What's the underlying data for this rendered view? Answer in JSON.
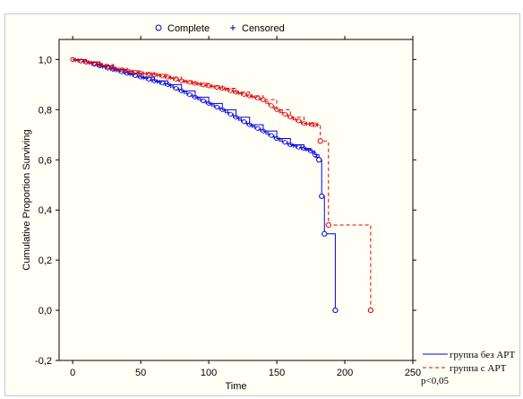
{
  "chart_data": {
    "type": "line",
    "subtype": "kaplan-meier survival",
    "xlabel": "Time",
    "ylabel": "Cumulative Proportion Surviving",
    "xlim": [
      -10,
      250
    ],
    "ylim": [
      -0.2,
      1.08
    ],
    "x_ticks": [
      0,
      50,
      100,
      150,
      200,
      250
    ],
    "y_ticks": [
      -0.2,
      0.0,
      0.2,
      0.4,
      0.6,
      0.8,
      1.0
    ],
    "y_tick_labels": [
      "-0,2",
      "0,0",
      "0,2",
      "0,4",
      "0,6",
      "0,8",
      "1,0"
    ],
    "x_tick_labels": [
      "0",
      "50",
      "100",
      "150",
      "200",
      "250"
    ],
    "top_legend": {
      "complete_label": "Complete",
      "censored_label": "Censored",
      "complete_marker": "circle",
      "censored_marker": "plus",
      "color": "#0000cc"
    },
    "series": [
      {
        "name": "группа без АРТ",
        "color": "#0000dd",
        "line_style": "solid",
        "points": [
          [
            0,
            1.0
          ],
          [
            10,
            0.99
          ],
          [
            20,
            0.975
          ],
          [
            30,
            0.96
          ],
          [
            40,
            0.945
          ],
          [
            50,
            0.93
          ],
          [
            60,
            0.915
          ],
          [
            70,
            0.9
          ],
          [
            80,
            0.875
          ],
          [
            90,
            0.85
          ],
          [
            100,
            0.825
          ],
          [
            110,
            0.8
          ],
          [
            120,
            0.77
          ],
          [
            130,
            0.74
          ],
          [
            140,
            0.715
          ],
          [
            150,
            0.685
          ],
          [
            160,
            0.66
          ],
          [
            170,
            0.645
          ],
          [
            175,
            0.635
          ],
          [
            178,
            0.62
          ],
          [
            181,
            0.6
          ],
          [
            183,
            0.455
          ],
          [
            185,
            0.305
          ],
          [
            193,
            0.305
          ],
          [
            193,
            0.0
          ]
        ]
      },
      {
        "name": "группа с АРТ",
        "color": "#dd0000",
        "line_style": "dashed",
        "points": [
          [
            0,
            1.0
          ],
          [
            10,
            0.99
          ],
          [
            20,
            0.98
          ],
          [
            30,
            0.965
          ],
          [
            40,
            0.955
          ],
          [
            50,
            0.945
          ],
          [
            60,
            0.94
          ],
          [
            70,
            0.93
          ],
          [
            80,
            0.915
          ],
          [
            90,
            0.905
          ],
          [
            100,
            0.895
          ],
          [
            110,
            0.885
          ],
          [
            120,
            0.87
          ],
          [
            130,
            0.855
          ],
          [
            140,
            0.84
          ],
          [
            150,
            0.8
          ],
          [
            160,
            0.77
          ],
          [
            170,
            0.745
          ],
          [
            178,
            0.74
          ],
          [
            182,
            0.74
          ],
          [
            182,
            0.675
          ],
          [
            188,
            0.675
          ],
          [
            188,
            0.34
          ],
          [
            219,
            0.34
          ],
          [
            219,
            0.0
          ]
        ]
      }
    ],
    "annotation": "p<0,05"
  }
}
